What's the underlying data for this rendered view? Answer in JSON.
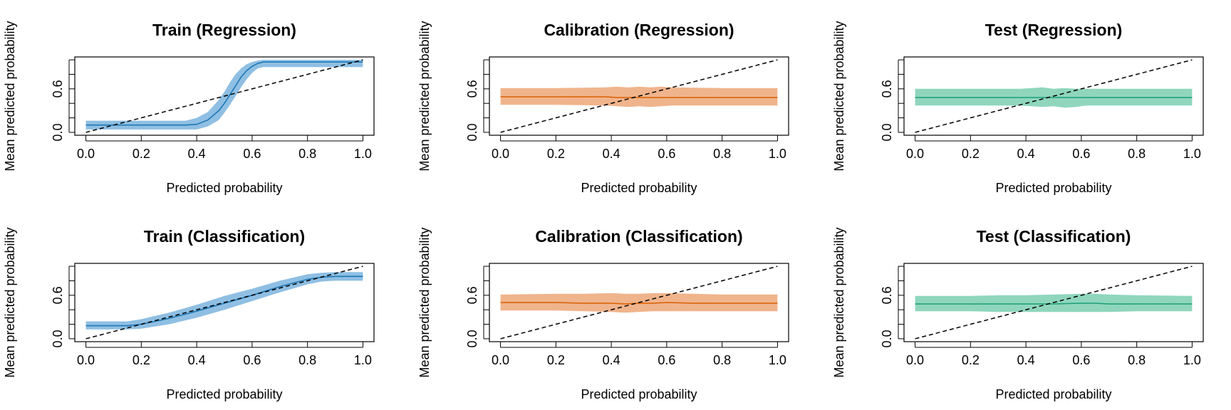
{
  "chart_data": [
    {
      "type": "line",
      "title": "Train (Regression)",
      "xlabel": "Predicted probability",
      "ylabel": "Mean predicted probability",
      "xlim": [
        0,
        1
      ],
      "ylim": [
        0,
        1
      ],
      "xticks": [
        "0.0",
        "0.2",
        "0.4",
        "0.6",
        "0.8",
        "1.0"
      ],
      "yticks": [
        "0.0",
        "0.6"
      ],
      "color": "#1f78b4",
      "band_color": "#8fbfe3",
      "reference_line": {
        "x": [
          0,
          1
        ],
        "y": [
          0,
          1
        ],
        "style": "dashed"
      },
      "series": [
        {
          "x": [
            0.0,
            0.1,
            0.2,
            0.3,
            0.36,
            0.4,
            0.44,
            0.48,
            0.5,
            0.52,
            0.54,
            0.56,
            0.58,
            0.6,
            0.62,
            0.64,
            0.7,
            0.8,
            0.9,
            1.0
          ],
          "y": [
            0.1,
            0.1,
            0.1,
            0.1,
            0.1,
            0.11,
            0.17,
            0.3,
            0.4,
            0.52,
            0.64,
            0.76,
            0.85,
            0.91,
            0.95,
            0.97,
            0.97,
            0.97,
            0.97,
            0.97
          ],
          "lower": [
            0.04,
            0.04,
            0.04,
            0.04,
            0.04,
            0.04,
            0.08,
            0.17,
            0.27,
            0.38,
            0.5,
            0.62,
            0.73,
            0.82,
            0.88,
            0.9,
            0.9,
            0.9,
            0.9,
            0.9
          ],
          "upper": [
            0.16,
            0.16,
            0.16,
            0.16,
            0.16,
            0.2,
            0.28,
            0.45,
            0.56,
            0.69,
            0.8,
            0.88,
            0.94,
            0.97,
            0.99,
            1.0,
            1.0,
            1.0,
            1.0,
            1.0
          ]
        }
      ]
    },
    {
      "type": "line",
      "title": "Calibration (Regression)",
      "xlabel": "Predicted probability",
      "ylabel": "Mean predicted probability",
      "xlim": [
        0,
        1
      ],
      "ylim": [
        0,
        1
      ],
      "xticks": [
        "0.0",
        "0.2",
        "0.4",
        "0.6",
        "0.8",
        "1.0"
      ],
      "yticks": [
        "0.0",
        "0.6"
      ],
      "color": "#d95f02",
      "band_color": "#f0b48c",
      "reference_line": {
        "x": [
          0,
          1
        ],
        "y": [
          0,
          1
        ],
        "style": "dashed"
      },
      "series": [
        {
          "x": [
            0.0,
            0.2,
            0.38,
            0.42,
            0.46,
            0.5,
            0.54,
            0.58,
            0.62,
            0.8,
            1.0
          ],
          "y": [
            0.49,
            0.49,
            0.49,
            0.48,
            0.48,
            0.48,
            0.48,
            0.48,
            0.48,
            0.48,
            0.48
          ],
          "lower": [
            0.38,
            0.38,
            0.37,
            0.36,
            0.35,
            0.36,
            0.35,
            0.36,
            0.37,
            0.37,
            0.37
          ],
          "upper": [
            0.61,
            0.61,
            0.62,
            0.63,
            0.62,
            0.63,
            0.62,
            0.63,
            0.62,
            0.61,
            0.61
          ]
        }
      ]
    },
    {
      "type": "line",
      "title": "Test (Regression)",
      "xlabel": "Predicted probability",
      "ylabel": "Mean predicted probability",
      "xlim": [
        0,
        1
      ],
      "ylim": [
        0,
        1
      ],
      "xticks": [
        "0.0",
        "0.2",
        "0.4",
        "0.6",
        "0.8",
        "1.0"
      ],
      "yticks": [
        "0.0",
        "0.6"
      ],
      "color": "#1b9e77",
      "band_color": "#8fd6bd",
      "reference_line": {
        "x": [
          0,
          1
        ],
        "y": [
          0,
          1
        ],
        "style": "dashed"
      },
      "series": [
        {
          "x": [
            0.0,
            0.2,
            0.38,
            0.42,
            0.46,
            0.5,
            0.54,
            0.58,
            0.62,
            0.8,
            1.0
          ],
          "y": [
            0.48,
            0.48,
            0.48,
            0.48,
            0.48,
            0.48,
            0.48,
            0.48,
            0.48,
            0.48,
            0.48
          ],
          "lower": [
            0.37,
            0.37,
            0.37,
            0.36,
            0.35,
            0.36,
            0.34,
            0.35,
            0.37,
            0.37,
            0.37
          ],
          "upper": [
            0.6,
            0.6,
            0.6,
            0.61,
            0.62,
            0.6,
            0.61,
            0.6,
            0.6,
            0.6,
            0.6
          ]
        }
      ]
    },
    {
      "type": "line",
      "title": "Train (Classification)",
      "xlabel": "Predicted probability",
      "ylabel": "Mean predicted probability",
      "xlim": [
        0,
        1
      ],
      "ylim": [
        0,
        1
      ],
      "xticks": [
        "0.0",
        "0.2",
        "0.4",
        "0.6",
        "0.8",
        "1.0"
      ],
      "yticks": [
        "0.0",
        "0.6"
      ],
      "color": "#1f78b4",
      "band_color": "#8fbfe3",
      "reference_line": {
        "x": [
          0,
          1
        ],
        "y": [
          0,
          1
        ],
        "style": "dashed"
      },
      "series": [
        {
          "x": [
            0.0,
            0.1,
            0.15,
            0.2,
            0.3,
            0.4,
            0.5,
            0.6,
            0.7,
            0.8,
            0.85,
            0.9,
            1.0
          ],
          "y": [
            0.18,
            0.18,
            0.18,
            0.2,
            0.28,
            0.38,
            0.49,
            0.6,
            0.72,
            0.82,
            0.85,
            0.86,
            0.86
          ],
          "lower": [
            0.13,
            0.13,
            0.13,
            0.14,
            0.2,
            0.29,
            0.4,
            0.52,
            0.64,
            0.75,
            0.79,
            0.8,
            0.8
          ],
          "upper": [
            0.24,
            0.24,
            0.24,
            0.27,
            0.36,
            0.47,
            0.59,
            0.69,
            0.8,
            0.89,
            0.91,
            0.92,
            0.92
          ]
        }
      ]
    },
    {
      "type": "line",
      "title": "Calibration (Classification)",
      "xlabel": "Predicted probability",
      "ylabel": "Mean predicted probability",
      "xlim": [
        0,
        1
      ],
      "ylim": [
        0,
        1
      ],
      "xticks": [
        "0.0",
        "0.2",
        "0.4",
        "0.6",
        "0.8",
        "1.0"
      ],
      "yticks": [
        "0.0",
        "0.6"
      ],
      "color": "#d95f02",
      "band_color": "#f0b48c",
      "reference_line": {
        "x": [
          0,
          1
        ],
        "y": [
          0,
          1
        ],
        "style": "dashed"
      },
      "series": [
        {
          "x": [
            0.0,
            0.2,
            0.3,
            0.4,
            0.45,
            0.5,
            0.55,
            0.6,
            0.7,
            0.8,
            0.9,
            1.0
          ],
          "y": [
            0.5,
            0.5,
            0.49,
            0.49,
            0.48,
            0.49,
            0.49,
            0.5,
            0.49,
            0.49,
            0.49,
            0.49
          ],
          "lower": [
            0.39,
            0.39,
            0.38,
            0.37,
            0.36,
            0.37,
            0.38,
            0.38,
            0.38,
            0.38,
            0.38,
            0.38
          ],
          "upper": [
            0.61,
            0.62,
            0.62,
            0.63,
            0.62,
            0.62,
            0.63,
            0.63,
            0.62,
            0.61,
            0.61,
            0.61
          ]
        }
      ]
    },
    {
      "type": "line",
      "title": "Test (Classification)",
      "xlabel": "Predicted probability",
      "ylabel": "Mean predicted probability",
      "xlim": [
        0,
        1
      ],
      "ylim": [
        0,
        1
      ],
      "xticks": [
        "0.0",
        "0.2",
        "0.4",
        "0.6",
        "0.8",
        "1.0"
      ],
      "yticks": [
        "0.0",
        "0.6"
      ],
      "color": "#1b9e77",
      "band_color": "#8fd6bd",
      "reference_line": {
        "x": [
          0,
          1
        ],
        "y": [
          0,
          1
        ],
        "style": "dashed"
      },
      "series": [
        {
          "x": [
            0.0,
            0.2,
            0.3,
            0.4,
            0.5,
            0.6,
            0.65,
            0.7,
            0.8,
            1.0
          ],
          "y": [
            0.48,
            0.48,
            0.48,
            0.48,
            0.48,
            0.49,
            0.49,
            0.48,
            0.48,
            0.48
          ],
          "lower": [
            0.38,
            0.38,
            0.37,
            0.37,
            0.37,
            0.37,
            0.37,
            0.37,
            0.38,
            0.38
          ],
          "upper": [
            0.59,
            0.59,
            0.6,
            0.6,
            0.61,
            0.62,
            0.62,
            0.61,
            0.6,
            0.59
          ]
        }
      ]
    }
  ]
}
